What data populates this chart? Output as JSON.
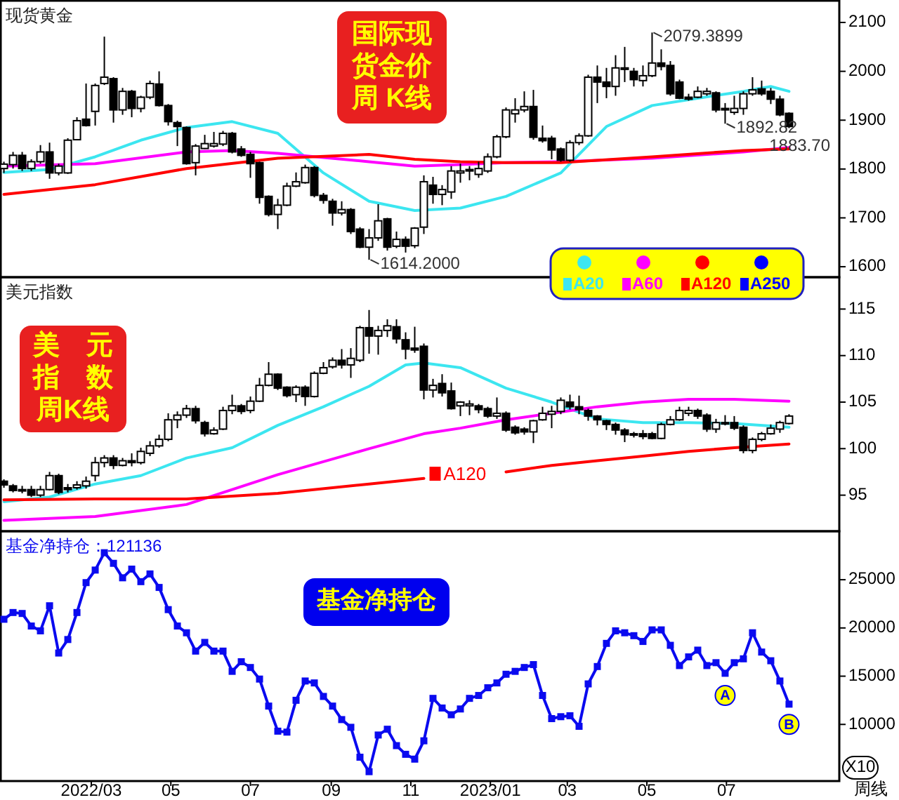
{
  "chart_data": [
    {
      "type": "candlestick",
      "title": "现货黄金",
      "annotations": [
        "国际现货金价周 K线",
        {
          "text": "2079.3899",
          "x": "2023-05-05",
          "y": 2079.3899
        },
        {
          "text": "1614.2000",
          "x": "2022-09-30",
          "y": 1614.2
        },
        {
          "text": "1892.82",
          "x": "2023-06-30",
          "y": 1892.82
        },
        {
          "text": "1883.70",
          "x": "2023-08-18",
          "y": 1883.7
        }
      ],
      "x": [
        "2021-12-24",
        "2021-12-31",
        "2022-01-07",
        "2022-01-14",
        "2022-01-21",
        "2022-01-28",
        "2022-02-04",
        "2022-02-11",
        "2022-02-18",
        "2022-02-25",
        "2022-03-04",
        "2022-03-11",
        "2022-03-18",
        "2022-03-25",
        "2022-04-01",
        "2022-04-08",
        "2022-04-15",
        "2022-04-22",
        "2022-04-29",
        "2022-05-06",
        "2022-05-13",
        "2022-05-20",
        "2022-05-27",
        "2022-06-03",
        "2022-06-10",
        "2022-06-17",
        "2022-06-24",
        "2022-07-01",
        "2022-07-08",
        "2022-07-15",
        "2022-07-22",
        "2022-07-29",
        "2022-08-05",
        "2022-08-12",
        "2022-08-19",
        "2022-08-26",
        "2022-09-02",
        "2022-09-09",
        "2022-09-16",
        "2022-09-23",
        "2022-09-30",
        "2022-10-07",
        "2022-10-14",
        "2022-10-21",
        "2022-10-28",
        "2022-11-04",
        "2022-11-11",
        "2022-11-18",
        "2022-11-25",
        "2022-12-02",
        "2022-12-09",
        "2022-12-16",
        "2022-12-23",
        "2022-12-30",
        "2023-01-06",
        "2023-01-13",
        "2023-01-20",
        "2023-01-27",
        "2023-02-03",
        "2023-02-10",
        "2023-02-17",
        "2023-02-24",
        "2023-03-03",
        "2023-03-10",
        "2023-03-17",
        "2023-03-24",
        "2023-03-31",
        "2023-04-07",
        "2023-04-14",
        "2023-04-21",
        "2023-04-28",
        "2023-05-05",
        "2023-05-12",
        "2023-05-19",
        "2023-05-26",
        "2023-06-02",
        "2023-06-09",
        "2023-06-16",
        "2023-06-23",
        "2023-06-30",
        "2023-07-07",
        "2023-07-14",
        "2023-07-21",
        "2023-07-28",
        "2023-08-04",
        "2023-08-11",
        "2023-08-18"
      ],
      "ohlc": [
        [
          1801,
          1815,
          1792,
          1810
        ],
        [
          1809,
          1835,
          1801,
          1828
        ],
        [
          1828,
          1835,
          1796,
          1801
        ],
        [
          1801,
          1820,
          1796,
          1815
        ],
        [
          1815,
          1849,
          1811,
          1835
        ],
        [
          1835,
          1854,
          1780,
          1792
        ],
        [
          1792,
          1811,
          1787,
          1806
        ],
        [
          1792,
          1863,
          1790,
          1859
        ],
        [
          1860,
          1906,
          1859,
          1899
        ],
        [
          1902,
          1975,
          1887,
          1889
        ],
        [
          1918,
          1975,
          1889,
          1971
        ],
        [
          1975,
          2071,
          1972,
          1988
        ],
        [
          1985,
          1988,
          1895,
          1921
        ],
        [
          1921,
          1966,
          1911,
          1959
        ],
        [
          1959,
          1962,
          1906,
          1924
        ],
        [
          1924,
          1950,
          1916,
          1947
        ],
        [
          1947,
          1981,
          1943,
          1975
        ],
        [
          1974,
          2000,
          1928,
          1930
        ],
        [
          1930,
          1933,
          1889,
          1897
        ],
        [
          1895,
          1899,
          1847,
          1887
        ],
        [
          1885,
          1887,
          1809,
          1811
        ],
        [
          1813,
          1851,
          1787,
          1847
        ],
        [
          1842,
          1870,
          1841,
          1852
        ],
        [
          1847,
          1876,
          1844,
          1852
        ],
        [
          1851,
          1878,
          1847,
          1873
        ],
        [
          1873,
          1876,
          1832,
          1835
        ],
        [
          1841,
          1847,
          1825,
          1828
        ],
        [
          1830,
          1835,
          1782,
          1811
        ],
        [
          1813,
          1815,
          1729,
          1742
        ],
        [
          1744,
          1746,
          1703,
          1707
        ],
        [
          1707,
          1739,
          1677,
          1726
        ],
        [
          1726,
          1772,
          1724,
          1765
        ],
        [
          1765,
          1793,
          1763,
          1774
        ],
        [
          1772,
          1809,
          1770,
          1803
        ],
        [
          1803,
          1806,
          1742,
          1746
        ],
        [
          1746,
          1751,
          1729,
          1736
        ],
        [
          1734,
          1739,
          1684,
          1710
        ],
        [
          1710,
          1734,
          1705,
          1717
        ],
        [
          1717,
          1720,
          1667,
          1672
        ],
        [
          1677,
          1681,
          1638,
          1640
        ],
        [
          1640,
          1677,
          1614.2,
          1659
        ],
        [
          1659,
          1728,
          1653,
          1694
        ],
        [
          1698,
          1700,
          1633,
          1640
        ],
        [
          1642,
          1672,
          1638,
          1656
        ],
        [
          1656,
          1662,
          1629,
          1642
        ],
        [
          1643,
          1681,
          1638,
          1679
        ],
        [
          1681,
          1787,
          1667,
          1774
        ],
        [
          1767,
          1784,
          1729,
          1748
        ],
        [
          1748,
          1767,
          1726,
          1758
        ],
        [
          1753,
          1806,
          1739,
          1796
        ],
        [
          1792,
          1811,
          1772,
          1796
        ],
        [
          1796,
          1806,
          1777,
          1799
        ],
        [
          1789,
          1815,
          1782,
          1801
        ],
        [
          1796,
          1832,
          1792,
          1825
        ],
        [
          1825,
          1870,
          1822,
          1866
        ],
        [
          1866,
          1926,
          1863,
          1921
        ],
        [
          1913,
          1945,
          1895,
          1921
        ],
        [
          1921,
          1959,
          1916,
          1928
        ],
        [
          1928,
          1962,
          1860,
          1865
        ],
        [
          1863,
          1889,
          1854,
          1858
        ],
        [
          1863,
          1868,
          1820,
          1839
        ],
        [
          1841,
          1844,
          1815,
          1818
        ],
        [
          1818,
          1859,
          1815,
          1854
        ],
        [
          1854,
          1873,
          1849,
          1868
        ],
        [
          1868,
          1993,
          1866,
          1988
        ],
        [
          1988,
          2012,
          1935,
          1978
        ],
        [
          1978,
          2007,
          1945,
          1969
        ],
        [
          1969,
          2033,
          1950,
          2007
        ],
        [
          2004,
          2050,
          1978,
          2007
        ],
        [
          2000,
          2007,
          1969,
          1983
        ],
        [
          1981,
          2012,
          1969,
          1991
        ],
        [
          1991,
          2079.3899,
          1988,
          2017
        ],
        [
          2017,
          2045,
          2002,
          2010
        ],
        [
          2012,
          2021,
          1950,
          1954
        ],
        [
          1978,
          1983,
          1943,
          1945
        ],
        [
          1947,
          1954,
          1940,
          1943
        ],
        [
          1947,
          1969,
          1945,
          1959
        ],
        [
          1954,
          1966,
          1950,
          1959
        ],
        [
          1956,
          1959,
          1916,
          1921
        ],
        [
          1924,
          1935,
          1892.82,
          1921
        ],
        [
          1916,
          1950,
          1911,
          1924
        ],
        [
          1924,
          1959,
          1911,
          1954
        ],
        [
          1954,
          1988,
          1950,
          1962
        ],
        [
          1964,
          1981,
          1950,
          1954
        ],
        [
          1959,
          1966,
          1933,
          1943
        ],
        [
          1943,
          1950,
          1908,
          1911
        ],
        [
          1914,
          1916,
          1883.7,
          1887
        ]
      ],
      "series": [
        {
          "name": "A20",
          "type": "line",
          "color": "#3ce6f0",
          "x": [
            "2021-12-24",
            "2022-01-28",
            "2022-03-04",
            "2022-04-08",
            "2022-05-13",
            "2022-06-17",
            "2022-07-22",
            "2022-08-26",
            "2022-09-30",
            "2022-11-04",
            "2022-12-09",
            "2023-01-13",
            "2023-02-24",
            "2023-03-31",
            "2023-05-05",
            "2023-06-09",
            "2023-07-14",
            "2023-08-04",
            "2023-08-18"
          ],
          "values": [
            1793,
            1799,
            1825,
            1859,
            1885,
            1897,
            1873,
            1792,
            1734,
            1715,
            1720,
            1744,
            1792,
            1887,
            1930,
            1945,
            1959,
            1969,
            1959
          ]
        },
        {
          "name": "A60",
          "type": "line",
          "color": "#ff00ff",
          "x": [
            "2021-12-24",
            "2022-03-04",
            "2022-05-13",
            "2022-06-17",
            "2022-07-22",
            "2022-09-30",
            "2022-11-04",
            "2022-12-09",
            "2023-01-13",
            "2023-02-24",
            "2023-05-05",
            "2023-07-14",
            "2023-08-18"
          ],
          "values": [
            1806,
            1811,
            1835,
            1838,
            1832,
            1815,
            1806,
            1809,
            1813,
            1815,
            1822,
            1835,
            1844
          ]
        },
        {
          "name": "A120",
          "type": "line",
          "color": "#ff0000",
          "x": [
            "2021-12-24",
            "2022-03-04",
            "2022-05-13",
            "2022-07-22",
            "2022-09-30",
            "2022-11-04",
            "2022-12-09",
            "2023-01-13",
            "2023-02-24",
            "2023-05-05",
            "2023-07-14",
            "2023-08-18"
          ],
          "values": [
            1748,
            1768,
            1801,
            1822,
            1830,
            1820,
            1815,
            1813,
            1813,
            1825,
            1838,
            1841
          ]
        },
        {
          "name": "A250",
          "type": "line",
          "color": "#0000ff",
          "values": [
            null,
            null,
            null,
            null,
            null,
            null,
            null,
            null,
            null,
            null,
            null,
            null,
            null,
            null,
            null,
            null,
            null,
            null,
            null,
            null,
            null,
            null,
            null,
            null,
            null,
            null,
            null,
            null,
            null,
            null,
            null,
            null,
            null,
            null,
            null,
            null,
            null,
            null,
            null,
            null,
            null,
            null,
            null,
            null,
            null,
            null,
            null,
            null,
            null,
            null,
            null,
            null,
            null,
            null,
            null,
            null,
            null,
            null,
            null,
            null,
            null,
            null,
            null,
            null,
            null,
            null,
            null,
            null,
            null,
            null,
            null,
            null,
            null,
            null,
            null,
            null,
            null,
            null,
            null,
            null,
            null,
            null,
            null,
            null,
            null,
            null,
            null
          ]
        }
      ],
      "legend": "bottom right",
      "tick_labels": "y",
      "xlim": [
        "2021-12-21",
        "2023-09-25"
      ],
      "ylim": [
        1580,
        2146
      ],
      "yticks": [
        1600,
        1700,
        1800,
        1900,
        2000,
        2100
      ]
    },
    {
      "type": "candlestick",
      "title": "美元指数",
      "annotations": [
        "美　元指　数周K线"
      ],
      "x": [
        "2021-12-24",
        "2021-12-31",
        "2022-01-07",
        "2022-01-14",
        "2022-01-21",
        "2022-01-28",
        "2022-02-04",
        "2022-02-11",
        "2022-02-18",
        "2022-02-25",
        "2022-03-04",
        "2022-03-11",
        "2022-03-18",
        "2022-03-25",
        "2022-04-01",
        "2022-04-08",
        "2022-04-15",
        "2022-04-22",
        "2022-04-29",
        "2022-05-06",
        "2022-05-13",
        "2022-05-20",
        "2022-05-27",
        "2022-06-03",
        "2022-06-10",
        "2022-06-17",
        "2022-06-24",
        "2022-07-01",
        "2022-07-08",
        "2022-07-15",
        "2022-07-22",
        "2022-07-29",
        "2022-08-05",
        "2022-08-12",
        "2022-08-19",
        "2022-08-26",
        "2022-09-02",
        "2022-09-09",
        "2022-09-16",
        "2022-09-23",
        "2022-09-30",
        "2022-10-07",
        "2022-10-14",
        "2022-10-21",
        "2022-10-28",
        "2022-11-04",
        "2022-11-11",
        "2022-11-18",
        "2022-11-25",
        "2022-12-02",
        "2022-12-09",
        "2022-12-16",
        "2022-12-23",
        "2022-12-30",
        "2023-01-06",
        "2023-01-13",
        "2023-01-20",
        "2023-01-27",
        "2023-02-03",
        "2023-02-10",
        "2023-02-17",
        "2023-02-24",
        "2023-03-03",
        "2023-03-10",
        "2023-03-17",
        "2023-03-24",
        "2023-03-31",
        "2023-04-07",
        "2023-04-14",
        "2023-04-21",
        "2023-04-28",
        "2023-05-05",
        "2023-05-12",
        "2023-05-19",
        "2023-05-26",
        "2023-06-02",
        "2023-06-09",
        "2023-06-16",
        "2023-06-23",
        "2023-06-30",
        "2023-07-07",
        "2023-07-14",
        "2023-07-21",
        "2023-07-28",
        "2023-08-04",
        "2023-08-11",
        "2023-08-18"
      ],
      "ohlc": [
        [
          96.5,
          96.7,
          95.8,
          96.1
        ],
        [
          96.0,
          96.2,
          95.3,
          95.5
        ],
        [
          95.6,
          96.0,
          95.2,
          95.5
        ],
        [
          95.6,
          96.0,
          94.8,
          95.0
        ],
        [
          95.0,
          96.0,
          94.8,
          95.6
        ],
        [
          95.6,
          97.5,
          95.5,
          97.1
        ],
        [
          97.1,
          97.3,
          95.1,
          95.3
        ],
        [
          95.8,
          96.2,
          95.3,
          95.6
        ],
        [
          95.8,
          96.5,
          95.6,
          96.1
        ],
        [
          96.0,
          97.0,
          95.7,
          96.5
        ],
        [
          97.1,
          99.1,
          96.5,
          98.5
        ],
        [
          98.5,
          99.3,
          98.0,
          99.0
        ],
        [
          99.0,
          99.3,
          97.8,
          98.2
        ],
        [
          98.2,
          99.0,
          98.1,
          98.7
        ],
        [
          98.7,
          99.5,
          98.1,
          98.5
        ],
        [
          98.5,
          100.1,
          98.3,
          99.7
        ],
        [
          99.5,
          100.8,
          99.2,
          100.3
        ],
        [
          100.3,
          101.5,
          100.1,
          101.0
        ],
        [
          101.0,
          103.8,
          100.8,
          103.1
        ],
        [
          103.1,
          104.0,
          102.2,
          103.6
        ],
        [
          103.6,
          104.7,
          103.3,
          104.3
        ],
        [
          104.3,
          104.6,
          102.7,
          103.0
        ],
        [
          102.8,
          103.0,
          101.3,
          101.6
        ],
        [
          101.6,
          102.3,
          101.5,
          102.0
        ],
        [
          102.1,
          104.5,
          102.0,
          104.1
        ],
        [
          104.1,
          105.8,
          103.7,
          104.6
        ],
        [
          104.6,
          104.8,
          103.7,
          104.0
        ],
        [
          104.1,
          105.6,
          103.8,
          105.1
        ],
        [
          105.1,
          107.6,
          105.0,
          106.8
        ],
        [
          106.8,
          109.3,
          106.7,
          108.0
        ],
        [
          108.0,
          108.1,
          106.3,
          106.5
        ],
        [
          106.6,
          106.7,
          105.5,
          105.7
        ],
        [
          105.8,
          106.8,
          105.0,
          106.6
        ],
        [
          106.6,
          106.8,
          104.6,
          105.6
        ],
        [
          105.6,
          108.3,
          105.5,
          108.1
        ],
        [
          108.1,
          109.3,
          108.0,
          108.7
        ],
        [
          108.8,
          109.8,
          108.6,
          109.5
        ],
        [
          109.5,
          110.7,
          108.6,
          109.0
        ],
        [
          109.0,
          110.8,
          107.6,
          109.7
        ],
        [
          109.5,
          113.2,
          109.3,
          113.0
        ],
        [
          113.0,
          114.9,
          110.2,
          112.1
        ],
        [
          112.1,
          113.2,
          110.1,
          112.7
        ],
        [
          112.7,
          113.9,
          112.0,
          113.2
        ],
        [
          113.1,
          113.9,
          111.3,
          111.8
        ],
        [
          111.7,
          112.5,
          109.6,
          110.7
        ],
        [
          110.8,
          113.1,
          110.3,
          110.6
        ],
        [
          111.0,
          111.3,
          105.3,
          106.3
        ],
        [
          106.3,
          107.5,
          105.5,
          106.8
        ],
        [
          107.0,
          108.0,
          105.6,
          106.0
        ],
        [
          106.2,
          107.1,
          104.2,
          104.3
        ],
        [
          104.6,
          105.1,
          103.5,
          105.0
        ],
        [
          104.6,
          105.2,
          103.6,
          104.8
        ],
        [
          104.6,
          104.8,
          103.8,
          104.2
        ],
        [
          104.3,
          104.5,
          103.3,
          103.5
        ],
        [
          103.5,
          105.5,
          103.2,
          103.8
        ],
        [
          103.8,
          104.0,
          101.8,
          102.0
        ],
        [
          102.3,
          102.5,
          101.5,
          101.7
        ],
        [
          102.1,
          102.3,
          101.5,
          101.8
        ],
        [
          101.8,
          103.1,
          100.6,
          103.0
        ],
        [
          103.1,
          104.5,
          103.0,
          103.8
        ],
        [
          103.7,
          104.6,
          102.2,
          104.0
        ],
        [
          104.0,
          105.5,
          103.7,
          105.2
        ],
        [
          105.0,
          105.8,
          104.2,
          104.5
        ],
        [
          104.5,
          105.7,
          103.7,
          104.2
        ],
        [
          104.1,
          104.3,
          103.0,
          103.5
        ],
        [
          103.5,
          103.6,
          102.5,
          103.1
        ],
        [
          103.0,
          103.1,
          102.0,
          102.6
        ],
        [
          102.6,
          102.8,
          101.5,
          102.0
        ],
        [
          102.0,
          102.2,
          100.7,
          101.5
        ],
        [
          101.6,
          101.8,
          101.2,
          101.5
        ],
        [
          101.6,
          102.0,
          101.0,
          101.3
        ],
        [
          101.6,
          101.8,
          101.0,
          101.1
        ],
        [
          101.1,
          102.8,
          101.0,
          102.6
        ],
        [
          102.6,
          103.5,
          102.5,
          103.1
        ],
        [
          103.1,
          104.5,
          103.0,
          104.1
        ],
        [
          103.8,
          104.5,
          103.5,
          104.1
        ],
        [
          104.1,
          104.3,
          103.2,
          103.5
        ],
        [
          103.6,
          103.8,
          101.8,
          102.1
        ],
        [
          102.1,
          103.2,
          101.7,
          102.8
        ],
        [
          102.8,
          103.6,
          102.5,
          102.7
        ],
        [
          102.8,
          103.5,
          102.0,
          102.2
        ],
        [
          102.3,
          102.5,
          99.5,
          99.8
        ],
        [
          99.8,
          101.2,
          99.5,
          101.0
        ],
        [
          101.0,
          101.8,
          100.8,
          101.6
        ],
        [
          101.6,
          102.6,
          101.5,
          102.2
        ],
        [
          102.1,
          103.0,
          101.7,
          102.8
        ],
        [
          102.7,
          103.7,
          102.6,
          103.5
        ]
      ],
      "series": [
        {
          "type": "line",
          "color": "#3ce6f0",
          "x": [
            "2021-12-24",
            "2022-01-28",
            "2022-03-04",
            "2022-04-08",
            "2022-05-13",
            "2022-06-17",
            "2022-07-22",
            "2022-08-26",
            "2022-09-30",
            "2022-10-28",
            "2022-11-11",
            "2022-12-09",
            "2023-01-13",
            "2023-02-17",
            "2023-03-24",
            "2023-04-28",
            "2023-06-02",
            "2023-07-07",
            "2023-08-18"
          ],
          "values": [
            94.3,
            94.8,
            96.2,
            97.1,
            99.0,
            100.1,
            102.5,
            104.5,
            106.7,
            109.0,
            109.2,
            108.7,
            106.5,
            105.0,
            103.2,
            102.8,
            102.8,
            102.7,
            102.3
          ]
        },
        {
          "type": "line",
          "color": "#ff00ff",
          "x": [
            "2021-12-24",
            "2022-03-04",
            "2022-05-13",
            "2022-07-22",
            "2022-09-30",
            "2022-11-11",
            "2022-12-09",
            "2023-01-13",
            "2023-02-17",
            "2023-03-24",
            "2023-04-28",
            "2023-06-02",
            "2023-07-07",
            "2023-08-18"
          ],
          "values": [
            92.3,
            92.7,
            94.0,
            97.2,
            100.0,
            101.6,
            102.2,
            103.1,
            103.8,
            104.5,
            105.0,
            105.3,
            105.3,
            105.1
          ]
        },
        {
          "name": "A120",
          "type": "line",
          "color": "#ff0000",
          "x": [
            "2021-12-24",
            "2022-03-04",
            "2022-05-13",
            "2022-07-22",
            "2022-09-30",
            "2022-11-11",
            "2022-12-09",
            "2023-01-13",
            "2023-02-17",
            "2023-03-24",
            "2023-04-28",
            "2023-06-02",
            "2023-07-07",
            "2023-08-18"
          ],
          "values": [
            94.5,
            94.6,
            94.6,
            95.2,
            96.2,
            96.8,
            null,
            97.5,
            98.2,
            98.7,
            99.2,
            99.7,
            100.1,
            100.5
          ]
        }
      ],
      "tick_labels": "y",
      "xlim": [
        "2021-12-21",
        "2023-09-25"
      ],
      "ylim": [
        91.2,
        118.5
      ],
      "yticks": [
        95,
        100,
        105,
        110,
        115
      ]
    },
    {
      "type": "line",
      "title": "基金净持仓：121136",
      "color": "#0a0aef",
      "marker": "square",
      "annotations": [
        "基金净持仓",
        "X10",
        "周线",
        {
          "text": "A",
          "x": "2023-06-30",
          "y": 13000
        },
        {
          "text": "B",
          "x": "2023-08-18",
          "y": 10000
        }
      ],
      "x": [
        "2021-12-24",
        "2021-12-31",
        "2022-01-07",
        "2022-01-14",
        "2022-01-21",
        "2022-01-28",
        "2022-02-04",
        "2022-02-11",
        "2022-02-18",
        "2022-02-25",
        "2022-03-04",
        "2022-03-11",
        "2022-03-18",
        "2022-03-25",
        "2022-04-01",
        "2022-04-08",
        "2022-04-15",
        "2022-04-22",
        "2022-04-29",
        "2022-05-06",
        "2022-05-13",
        "2022-05-20",
        "2022-05-27",
        "2022-06-03",
        "2022-06-10",
        "2022-06-17",
        "2022-06-24",
        "2022-07-01",
        "2022-07-08",
        "2022-07-15",
        "2022-07-22",
        "2022-07-29",
        "2022-08-05",
        "2022-08-12",
        "2022-08-19",
        "2022-08-26",
        "2022-09-02",
        "2022-09-09",
        "2022-09-16",
        "2022-09-23",
        "2022-09-30",
        "2022-10-07",
        "2022-10-14",
        "2022-10-21",
        "2022-10-28",
        "2022-11-04",
        "2022-11-11",
        "2022-11-18",
        "2022-11-25",
        "2022-12-02",
        "2022-12-09",
        "2022-12-16",
        "2022-12-23",
        "2022-12-30",
        "2023-01-06",
        "2023-01-13",
        "2023-01-20",
        "2023-01-27",
        "2023-02-03",
        "2023-02-10",
        "2023-02-17",
        "2023-02-24",
        "2023-03-03",
        "2023-03-10",
        "2023-03-17",
        "2023-03-24",
        "2023-03-31",
        "2023-04-07",
        "2023-04-14",
        "2023-04-21",
        "2023-04-28",
        "2023-05-05",
        "2023-05-12",
        "2023-05-19",
        "2023-05-26",
        "2023-06-02",
        "2023-06-09",
        "2023-06-16",
        "2023-06-23",
        "2023-06-30",
        "2023-07-07",
        "2023-07-14",
        "2023-07-21",
        "2023-07-28",
        "2023-08-04",
        "2023-08-11",
        "2023-08-18"
      ],
      "values": [
        20900,
        21600,
        21500,
        20200,
        19700,
        22300,
        17400,
        18800,
        21600,
        24700,
        26000,
        27800,
        26700,
        25200,
        26100,
        24800,
        25600,
        24200,
        21900,
        20200,
        19500,
        17600,
        18500,
        17600,
        17600,
        15500,
        16500,
        15900,
        14700,
        11900,
        9300,
        9200,
        12500,
        14500,
        14300,
        12900,
        11900,
        10500,
        9700,
        6600,
        5100,
        8900,
        9500,
        7800,
        6900,
        6400,
        8300,
        12700,
        11700,
        11000,
        11600,
        12700,
        13000,
        13800,
        14300,
        15200,
        15500,
        15900,
        16200,
        13000,
        10600,
        10800,
        10900,
        9800,
        14200,
        16000,
        18400,
        19700,
        19500,
        19200,
        18600,
        19800,
        19800,
        18200,
        16100,
        17000,
        17700,
        16100,
        16400,
        15300,
        16400,
        16800,
        19500,
        17500,
        16600,
        14500,
        12100
      ],
      "xlim": [
        "2021-12-21",
        "2023-09-25"
      ],
      "ylim": [
        4200,
        30100
      ],
      "yticks": [
        10000,
        15000,
        20000,
        25000
      ],
      "xticks": [
        {
          "value": "2022-03-01",
          "label": "2022/03"
        },
        {
          "value": "2022-05-01",
          "label": "05"
        },
        {
          "value": "2022-07-01",
          "label": "07"
        },
        {
          "value": "2022-09-01",
          "label": "09"
        },
        {
          "value": "2022-11-01",
          "label": "11"
        },
        {
          "value": "2023-01-01",
          "label": "2023/01"
        },
        {
          "value": "2023-03-01",
          "label": "03"
        },
        {
          "value": "2023-05-01",
          "label": "05"
        },
        {
          "value": "2023-07-01",
          "label": "07"
        }
      ]
    }
  ]
}
